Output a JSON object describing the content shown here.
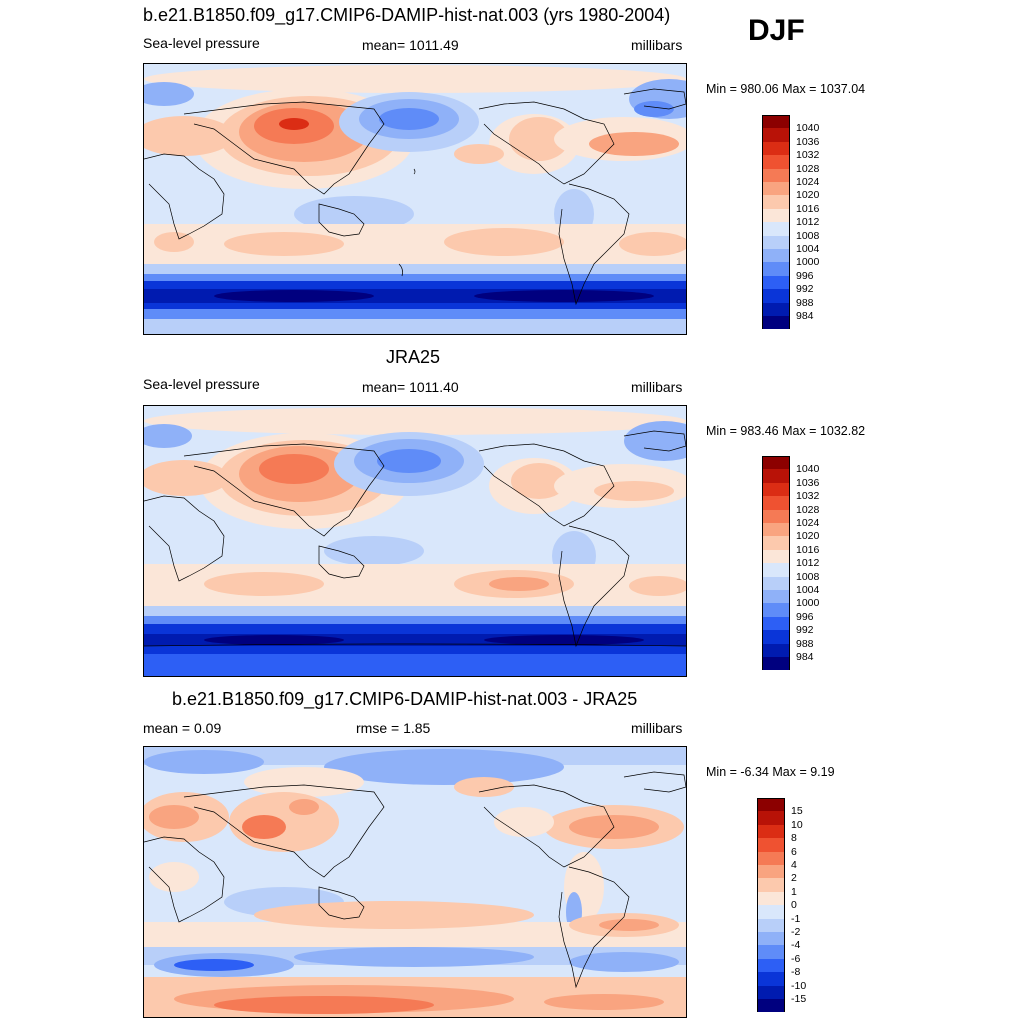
{
  "season": "DJF",
  "colors": {
    "fill_levels": [
      "#00007f",
      "#001bb0",
      "#0a35d8",
      "#2d5ff5",
      "#5f8cf8",
      "#8fb1f8",
      "#b8cff9",
      "#d9e7fb",
      "#fbe6d8",
      "#fcc9ad",
      "#f9a480",
      "#f57a55",
      "#ef5231",
      "#db2d14",
      "#b81207",
      "#8c0000"
    ],
    "coastline": "#000000"
  },
  "panels": [
    {
      "title": "b.e21.B1850.f09_g17.CMIP6-DAMIP-hist-nat.003 (yrs 1980-2004)",
      "left_label": "Sea-level pressure",
      "center_label": "mean= 1011.49",
      "right_label": "millibars",
      "minmax": "Min = 980.06 Max = 1037.04",
      "colorbar": [
        "1040",
        "1036",
        "1032",
        "1028",
        "1024",
        "1020",
        "1016",
        "1012",
        "1008",
        "1004",
        "1000",
        "996",
        "992",
        "988",
        "984"
      ]
    },
    {
      "title": "JRA25",
      "left_label": "Sea-level pressure",
      "center_label": "mean= 1011.40",
      "right_label": "millibars",
      "minmax": "Min = 983.46 Max = 1032.82",
      "colorbar": [
        "1040",
        "1036",
        "1032",
        "1028",
        "1024",
        "1020",
        "1016",
        "1012",
        "1008",
        "1004",
        "1000",
        "996",
        "992",
        "988",
        "984"
      ]
    },
    {
      "title": "b.e21.B1850.f09_g17.CMIP6-DAMIP-hist-nat.003 - JRA25",
      "left_label": "mean =   0.09",
      "center_label": "rmse =   1.85",
      "right_label": "millibars",
      "minmax": "Min =  -6.34 Max =   9.19",
      "colorbar": [
        "15",
        "10",
        "8",
        "6",
        "4",
        "2",
        "1",
        "0",
        "-1",
        "-2",
        "-4",
        "-6",
        "-8",
        "-10",
        "-15"
      ]
    }
  ]
}
